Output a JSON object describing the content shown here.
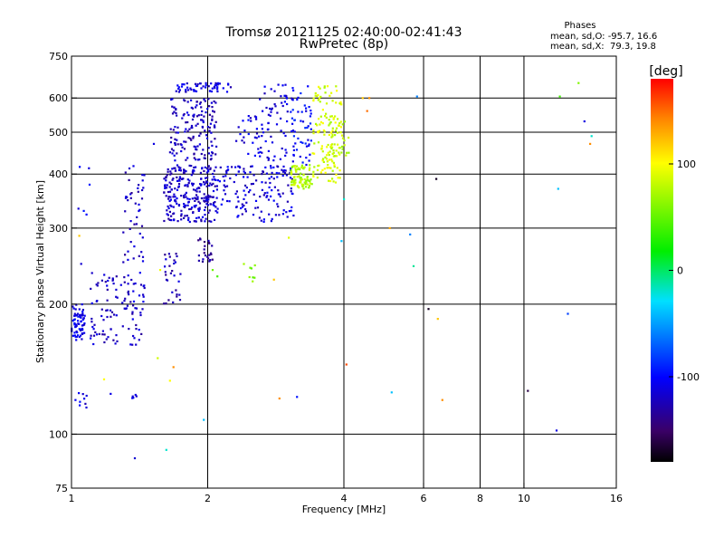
{
  "chart_data": {
    "type": "scatter",
    "title": "Tromsø 20121125 02:40:00-02:41:43",
    "subtitle": "RwPretec (8p)",
    "xlabel": "Frequency [MHz]",
    "ylabel": "Stationary phase Virtual Height [km]",
    "x_scale": "log",
    "y_scale": "log",
    "xlim": [
      1,
      16
    ],
    "ylim": [
      75,
      750
    ],
    "x_ticks": [
      1,
      2,
      4,
      6,
      8,
      10,
      16
    ],
    "x_tick_labels": [
      "1",
      "2",
      "4",
      "6",
      "8",
      "10",
      "16"
    ],
    "y_ticks": [
      75,
      100,
      200,
      300,
      400,
      500,
      600,
      750
    ],
    "y_tick_labels": [
      "75",
      "100",
      "200",
      "300",
      "400",
      "500",
      "600",
      "750"
    ],
    "grid": true,
    "stats": {
      "header": "Phases",
      "line_o": "mean, sd,O: -95.7, 16.6",
      "line_x": "mean, sd,X:  79.3, 19.8"
    },
    "colorbar": {
      "label": "[deg]",
      "range": [
        -180,
        180
      ],
      "ticks": [
        100,
        0,
        -100
      ],
      "tick_labels": [
        "100",
        "0",
        "-100"
      ]
    },
    "clusters": [
      {
        "f": [
          1.0,
          1.07
        ],
        "h": [
          165,
          200
        ],
        "phase": -108,
        "n": 70
      },
      {
        "f": [
          1.02,
          1.08
        ],
        "h": [
          115,
          125
        ],
        "phase": -110,
        "n": 8
      },
      {
        "f": [
          1.02,
          1.1
        ],
        "h": [
          320,
          440
        ],
        "phase": -105,
        "n": 6
      },
      {
        "f": [
          1.1,
          1.45
        ],
        "h": [
          160,
          240
        ],
        "phase": -118,
        "n": 110
      },
      {
        "f": [
          1.3,
          1.45
        ],
        "h": [
          250,
          420
        ],
        "phase": -122,
        "n": 45
      },
      {
        "f": [
          1.35,
          1.42
        ],
        "h": [
          120,
          125
        ],
        "phase": -110,
        "n": 5
      },
      {
        "f": [
          1.6,
          1.75
        ],
        "h": [
          200,
          270
        ],
        "phase": -122,
        "n": 30
      },
      {
        "f": [
          1.6,
          2.1
        ],
        "h": [
          310,
          420
        ],
        "phase": -118,
        "n": 260
      },
      {
        "f": [
          1.65,
          2.1
        ],
        "h": [
          430,
          600
        ],
        "phase": -120,
        "n": 150
      },
      {
        "f": [
          1.7,
          2.25
        ],
        "h": [
          620,
          650
        ],
        "phase": -112,
        "n": 55
      },
      {
        "f": [
          1.9,
          2.05
        ],
        "h": [
          250,
          285
        ],
        "phase": -132,
        "n": 25
      },
      {
        "f": [
          2.1,
          3.1
        ],
        "h": [
          310,
          420
        ],
        "phase": -112,
        "n": 150
      },
      {
        "f": [
          2.3,
          3.0
        ],
        "h": [
          430,
          550
        ],
        "phase": -110,
        "n": 60
      },
      {
        "f": [
          2.6,
          3.1
        ],
        "h": [
          550,
          650
        ],
        "phase": -112,
        "n": 30
      },
      {
        "f": [
          2.4,
          2.55
        ],
        "h": [
          225,
          250
        ],
        "phase": 60,
        "n": 8
      },
      {
        "f": [
          3.05,
          3.4
        ],
        "h": [
          370,
          420
        ],
        "phase": 75,
        "n": 80
      },
      {
        "f": [
          3.05,
          3.4
        ],
        "h": [
          420,
          640
        ],
        "phase": -100,
        "n": 55
      },
      {
        "f": [
          3.4,
          3.95
        ],
        "h": [
          380,
          640
        ],
        "phase": 88,
        "n": 130
      },
      {
        "f": [
          3.7,
          4.1
        ],
        "h": [
          440,
          530
        ],
        "phase": 78,
        "n": 30
      }
    ],
    "isolated_points": [
      {
        "f": 1.02,
        "h": 120,
        "phase": -105
      },
      {
        "f": 1.04,
        "h": 288,
        "phase": 120
      },
      {
        "f": 1.05,
        "h": 248,
        "phase": -115
      },
      {
        "f": 1.18,
        "h": 134,
        "phase": 100
      },
      {
        "f": 1.22,
        "h": 124,
        "phase": -108
      },
      {
        "f": 1.38,
        "h": 88,
        "phase": -115
      },
      {
        "f": 1.52,
        "h": 470,
        "phase": -110
      },
      {
        "f": 1.55,
        "h": 150,
        "phase": 85
      },
      {
        "f": 1.57,
        "h": 240,
        "phase": 95
      },
      {
        "f": 1.65,
        "h": 133,
        "phase": 100
      },
      {
        "f": 1.68,
        "h": 143,
        "phase": 140
      },
      {
        "f": 1.62,
        "h": 92,
        "phase": -20
      },
      {
        "f": 1.96,
        "h": 108,
        "phase": -40
      },
      {
        "f": 2.05,
        "h": 240,
        "phase": 55
      },
      {
        "f": 2.1,
        "h": 232,
        "phase": 40
      },
      {
        "f": 2.8,
        "h": 228,
        "phase": 120
      },
      {
        "f": 2.88,
        "h": 121,
        "phase": 140
      },
      {
        "f": 3.02,
        "h": 285,
        "phase": 90
      },
      {
        "f": 3.15,
        "h": 122,
        "phase": -95
      },
      {
        "f": 3.95,
        "h": 280,
        "phase": -40
      },
      {
        "f": 4.0,
        "h": 350,
        "phase": -20
      },
      {
        "f": 4.05,
        "h": 145,
        "phase": 160
      },
      {
        "f": 4.4,
        "h": 600,
        "phase": 120
      },
      {
        "f": 4.5,
        "h": 560,
        "phase": 150
      },
      {
        "f": 4.55,
        "h": 600,
        "phase": 140
      },
      {
        "f": 5.05,
        "h": 300,
        "phase": 130
      },
      {
        "f": 5.1,
        "h": 125,
        "phase": -40
      },
      {
        "f": 5.6,
        "h": 290,
        "phase": -60
      },
      {
        "f": 5.7,
        "h": 245,
        "phase": -10
      },
      {
        "f": 5.8,
        "h": 605,
        "phase": -60
      },
      {
        "f": 6.15,
        "h": 195,
        "phase": -170
      },
      {
        "f": 6.4,
        "h": 390,
        "phase": -170
      },
      {
        "f": 6.45,
        "h": 185,
        "phase": 120
      },
      {
        "f": 6.6,
        "h": 120,
        "phase": 140
      },
      {
        "f": 10.2,
        "h": 126,
        "phase": -160
      },
      {
        "f": 11.8,
        "h": 102,
        "phase": -110
      },
      {
        "f": 11.9,
        "h": 370,
        "phase": -40
      },
      {
        "f": 12.0,
        "h": 605,
        "phase": 40
      },
      {
        "f": 12.5,
        "h": 190,
        "phase": -80
      },
      {
        "f": 13.2,
        "h": 650,
        "phase": 60
      },
      {
        "f": 13.6,
        "h": 530,
        "phase": -110
      },
      {
        "f": 14.0,
        "h": 470,
        "phase": 140
      },
      {
        "f": 14.1,
        "h": 490,
        "phase": -20
      }
    ]
  }
}
